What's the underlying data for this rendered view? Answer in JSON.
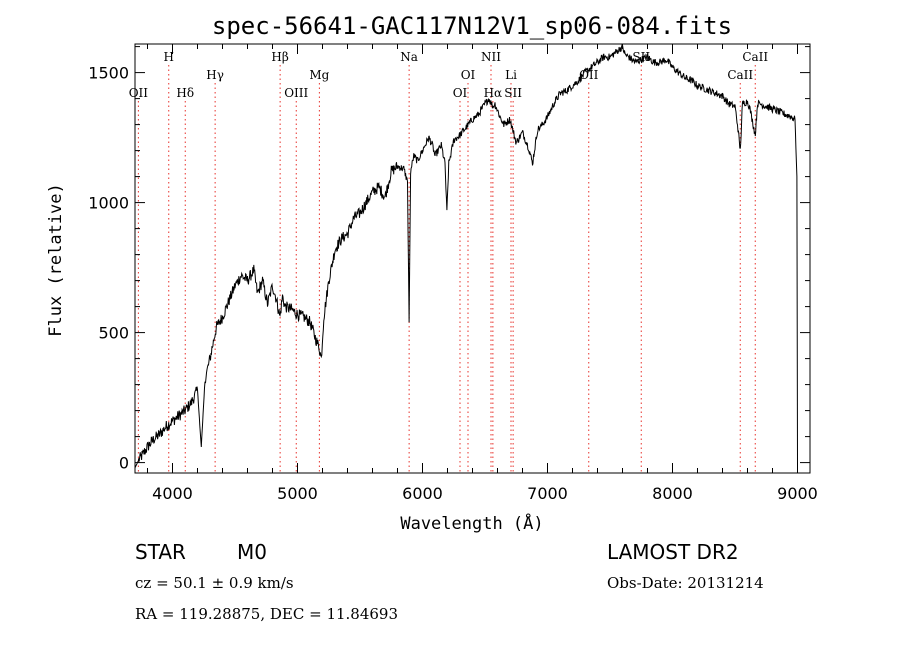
{
  "chart_data": {
    "type": "line",
    "title": "spec-56641-GAC117N12V1_sp06-084.fits",
    "xlabel": "Wavelength (Å)",
    "ylabel": "Flux (relative)",
    "xlim": [
      3700,
      9100
    ],
    "ylim": [
      -40,
      1610
    ],
    "xticks": [
      4000,
      5000,
      6000,
      7000,
      8000,
      9000
    ],
    "yticks": [
      0,
      500,
      1000,
      1500
    ],
    "grid": false,
    "line_color": "#000000",
    "marker_color": "#e8312b",
    "series": [
      {
        "x": [
          3700,
          3730,
          3760,
          3800,
          3850,
          3900,
          3950,
          4000,
          4050,
          4100,
          4150,
          4200,
          4230,
          4260,
          4300,
          4350,
          4400,
          4450,
          4500,
          4550,
          4600,
          4650,
          4680,
          4720,
          4760,
          4800,
          4830,
          4860,
          4880,
          4900,
          4950,
          5000,
          5050,
          5100,
          5150,
          5175,
          5190,
          5210,
          5250,
          5300,
          5350,
          5400,
          5450,
          5500,
          5550,
          5600,
          5650,
          5700,
          5750,
          5800,
          5850,
          5880,
          5893,
          5905,
          5930,
          5960,
          6000,
          6050,
          6080,
          6100,
          6150,
          6180,
          6195,
          6210,
          6250,
          6300,
          6350,
          6400,
          6450,
          6500,
          6530,
          6563,
          6580,
          6620,
          6650,
          6700,
          6750,
          6800,
          6850,
          6880,
          6920,
          6960,
          7000,
          7050,
          7100,
          7150,
          7200,
          7250,
          7300,
          7350,
          7400,
          7450,
          7500,
          7550,
          7600,
          7620,
          7650,
          7700,
          7750,
          7800,
          7850,
          7900,
          7950,
          8000,
          8050,
          8100,
          8150,
          8200,
          8250,
          8300,
          8350,
          8400,
          8450,
          8500,
          8520,
          8542,
          8560,
          8600,
          8620,
          8662,
          8680,
          8700,
          8750,
          8800,
          8850,
          8900,
          8950,
          8980,
          8995,
          9000
        ],
        "y": [
          -20,
          10,
          30,
          60,
          90,
          110,
          140,
          160,
          180,
          200,
          230,
          280,
          60,
          320,
          400,
          520,
          560,
          620,
          680,
          720,
          700,
          740,
          650,
          700,
          610,
          680,
          630,
          560,
          640,
          600,
          590,
          570,
          560,
          540,
          470,
          440,
          400,
          560,
          700,
          820,
          860,
          880,
          940,
          960,
          1000,
          1040,
          1060,
          1020,
          1120,
          1140,
          1130,
          1080,
          540,
          1120,
          1180,
          1160,
          1200,
          1250,
          1220,
          1180,
          1220,
          1150,
          960,
          1150,
          1240,
          1260,
          1290,
          1320,
          1340,
          1380,
          1400,
          1370,
          1380,
          1330,
          1300,
          1320,
          1230,
          1270,
          1210,
          1150,
          1280,
          1300,
          1330,
          1380,
          1420,
          1430,
          1450,
          1470,
          1500,
          1520,
          1540,
          1560,
          1560,
          1580,
          1600,
          1570,
          1560,
          1540,
          1550,
          1560,
          1540,
          1540,
          1550,
          1520,
          1500,
          1480,
          1470,
          1450,
          1440,
          1430,
          1420,
          1410,
          1380,
          1370,
          1300,
          1200,
          1380,
          1390,
          1360,
          1260,
          1380,
          1380,
          1370,
          1360,
          1350,
          1340,
          1330,
          1320,
          1100,
          -10
        ]
      }
    ],
    "line_markers": [
      {
        "label": "OII",
        "x": 3727,
        "row": 3
      },
      {
        "label": "H",
        "x": 3970,
        "row": 1
      },
      {
        "label": "Hδ",
        "x": 4102,
        "row": 3
      },
      {
        "label": "Hγ",
        "x": 4341,
        "row": 2
      },
      {
        "label": "Hβ",
        "x": 4861,
        "row": 1
      },
      {
        "label": "OIII",
        "x": 4990,
        "row": 3
      },
      {
        "label": "Mg",
        "x": 5175,
        "row": 2
      },
      {
        "label": "Na",
        "x": 5893,
        "row": 1
      },
      {
        "label": "OI",
        "x": 6300,
        "row": 3
      },
      {
        "label": "OI",
        "x": 6364,
        "row": 2
      },
      {
        "label": "NII",
        "x": 6548,
        "row": 1
      },
      {
        "label": "Hα",
        "x": 6563,
        "row": 3
      },
      {
        "label": "Li",
        "x": 6708,
        "row": 2
      },
      {
        "label": "SII",
        "x": 6725,
        "row": 3
      },
      {
        "label": "OII",
        "x": 7330,
        "row": 2
      },
      {
        "label": "SII",
        "x": 7750,
        "row": 1
      },
      {
        "label": "CaII",
        "x": 8542,
        "row": 2
      },
      {
        "label": "CaII",
        "x": 8662,
        "row": 1
      }
    ]
  },
  "info": {
    "class_label": "STAR",
    "subclass": "M0",
    "cz": "cz = 50.1 ± 0.9 km/s",
    "coords": "RA = 119.28875, DEC =  11.84693",
    "survey": "LAMOST DR2",
    "obs_date": "Obs-Date: 20131214"
  }
}
